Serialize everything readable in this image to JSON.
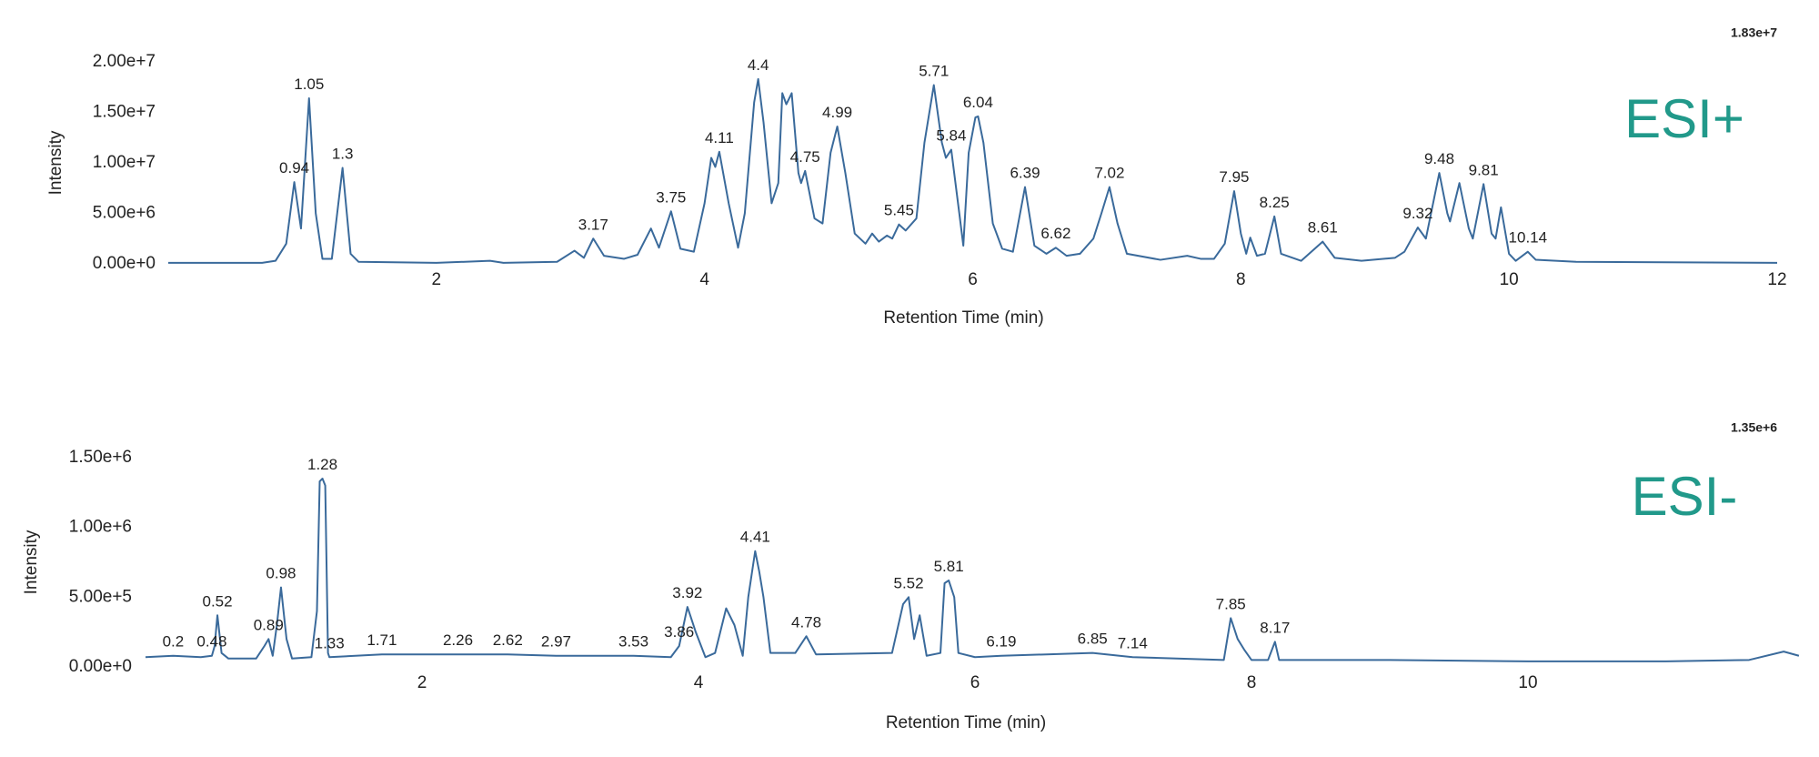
{
  "chart_data": [
    {
      "type": "line",
      "x_label": "Retention Time (min)",
      "y_label": "Intensity",
      "max_label": "1.83e+7",
      "annotation": "ESI+",
      "color": "#3a6a9b",
      "annotation_color": "#21998a",
      "xlim": [
        0,
        12
      ],
      "ylim": [
        0,
        20000000
      ],
      "xticks": [
        2,
        4,
        6,
        8,
        10,
        12
      ],
      "yticks": [
        {
          "value": 0,
          "label": "0.00e+0"
        },
        {
          "value": 5000000,
          "label": "5.00e+6"
        },
        {
          "value": 10000000,
          "label": "1.00e+7"
        },
        {
          "value": 15000000,
          "label": "1.50e+7"
        },
        {
          "value": 20000000,
          "label": "2.00e+7"
        }
      ],
      "x": [
        0,
        0.7,
        0.8,
        0.88,
        0.94,
        0.99,
        1.05,
        1.1,
        1.15,
        1.22,
        1.3,
        1.36,
        1.42,
        2.0,
        2.4,
        2.5,
        2.9,
        3.03,
        3.1,
        3.17,
        3.25,
        3.4,
        3.5,
        3.6,
        3.66,
        3.75,
        3.82,
        3.92,
        4.0,
        4.05,
        4.08,
        4.11,
        4.18,
        4.25,
        4.3,
        4.37,
        4.4,
        4.44,
        4.5,
        4.55,
        4.58,
        4.61,
        4.65,
        4.7,
        4.72,
        4.75,
        4.82,
        4.88,
        4.94,
        4.99,
        5.05,
        5.12,
        5.2,
        5.25,
        5.3,
        5.36,
        5.4,
        5.45,
        5.5,
        5.58,
        5.64,
        5.71,
        5.77,
        5.8,
        5.84,
        5.9,
        5.93,
        5.97,
        6.02,
        6.04,
        6.08,
        6.15,
        6.22,
        6.3,
        6.39,
        6.46,
        6.55,
        6.62,
        6.7,
        6.8,
        6.9,
        6.96,
        7.02,
        7.08,
        7.15,
        7.4,
        7.6,
        7.7,
        7.8,
        7.88,
        7.95,
        8.0,
        8.04,
        8.07,
        8.12,
        8.18,
        8.25,
        8.3,
        8.45,
        8.61,
        8.7,
        8.9,
        9.15,
        9.22,
        9.32,
        9.38,
        9.48,
        9.54,
        9.56,
        9.63,
        9.7,
        9.73,
        9.81,
        9.87,
        9.9,
        9.94,
        10.0,
        10.05,
        10.14,
        10.2,
        10.5,
        12
      ],
      "values": [
        100000.0,
        100000.0,
        300000.0,
        2000000.0,
        8100000.0,
        3500000.0,
        16400000.0,
        5000000.0,
        500000.0,
        500000.0,
        9500000.0,
        1000000.0,
        200000.0,
        100000.0,
        300000.0,
        100000.0,
        200000.0,
        1300000.0,
        600000.0,
        2500000.0,
        800000.0,
        500000.0,
        900000.0,
        3500000.0,
        1600000.0,
        5200000.0,
        1500000.0,
        1200000.0,
        6000000.0,
        10500000.0,
        9600000.0,
        11100000.0,
        6000000.0,
        1600000.0,
        5000000.0,
        16000000.0,
        18300000.0,
        14000000.0,
        6000000.0,
        8000000.0,
        16900000.0,
        15800000.0,
        16900000.0,
        9000000.0,
        8000000.0,
        9200000.0,
        4500000.0,
        4000000.0,
        11000000.0,
        13600000.0,
        9000000.0,
        3000000.0,
        2000000.0,
        3000000.0,
        2200000.0,
        2800000.0,
        2500000.0,
        3900000.0,
        3300000.0,
        4500000.0,
        12000000.0,
        17700000.0,
        12000000.0,
        10500000.0,
        11300000.0,
        5000000.0,
        1800000.0,
        11000000.0,
        14500000.0,
        14600000.0,
        12000000.0,
        4000000.0,
        1500000.0,
        1200000.0,
        7600000.0,
        1800000.0,
        1000000.0,
        1600000.0,
        800000.0,
        1000000.0,
        2500000.0,
        5000000.0,
        7600000.0,
        4000000.0,
        1000000.0,
        400000.0,
        800000.0,
        500000.0,
        500000.0,
        2000000.0,
        7200000.0,
        3000000.0,
        1000000.0,
        2600000.0,
        800000.0,
        1000000.0,
        4700000.0,
        1000000.0,
        300000.0,
        2200000.0,
        600000.0,
        300000.0,
        600000.0,
        1200000.0,
        3600000.0,
        2500000.0,
        9000000.0,
        5000000.0,
        4200000.0,
        8000000.0,
        3500000.0,
        2500000.0,
        7900000.0,
        3000000.0,
        2500000.0,
        5600000.0,
        1000000.0,
        300000.0,
        1200000.0,
        400000.0,
        200000.0,
        100000.0
      ],
      "peak_labels": {
        "x": [
          0.94,
          1.05,
          1.3,
          3.17,
          3.75,
          4.11,
          4.4,
          4.75,
          4.99,
          5.45,
          5.71,
          5.84,
          6.04,
          6.39,
          6.62,
          7.02,
          7.95,
          8.25,
          8.61,
          9.32,
          9.48,
          9.81,
          10.14
        ],
        "values": [
          8100000.0,
          16400000.0,
          9500000.0,
          2500000.0,
          5200000.0,
          11100000.0,
          18300000.0,
          9200000.0,
          13600000.0,
          3900000.0,
          17700000.0,
          11300000.0,
          14600000.0,
          7600000.0,
          1600000.0,
          7600000.0,
          7200000.0,
          4700000.0,
          2200000.0,
          3600000.0,
          9000000.0,
          7900000.0,
          1200000.0
        ]
      }
    },
    {
      "type": "line",
      "x_label": "Retention Time (min)",
      "y_label": "Intensity",
      "max_label": "1.35e+6",
      "annotation": "ESI-",
      "color": "#3a6a9b",
      "annotation_color": "#21998a",
      "xlim": [
        0,
        12
      ],
      "ylim": [
        0,
        1500000
      ],
      "xticks": [
        2,
        4,
        6,
        8,
        10
      ],
      "yticks": [
        {
          "value": 0,
          "label": "0.00e+0"
        },
        {
          "value": 500000,
          "label": "5.00e+5"
        },
        {
          "value": 1000000,
          "label": "1.00e+6"
        },
        {
          "value": 1500000,
          "label": "1.50e+6"
        }
      ],
      "x": [
        0,
        0.2,
        0.4,
        0.48,
        0.5,
        0.52,
        0.55,
        0.6,
        0.8,
        0.86,
        0.89,
        0.92,
        0.95,
        0.98,
        1.02,
        1.06,
        1.2,
        1.24,
        1.26,
        1.28,
        1.3,
        1.32,
        1.33,
        1.71,
        2.26,
        2.62,
        2.97,
        3.53,
        3.8,
        3.86,
        3.92,
        3.98,
        4.05,
        4.12,
        4.2,
        4.26,
        4.32,
        4.36,
        4.41,
        4.44,
        4.47,
        4.52,
        4.7,
        4.78,
        4.85,
        5.4,
        5.48,
        5.52,
        5.56,
        5.6,
        5.65,
        5.75,
        5.78,
        5.81,
        5.85,
        5.88,
        6.0,
        6.19,
        6.85,
        7.14,
        7.8,
        7.85,
        7.9,
        7.95,
        8.0,
        8.12,
        8.17,
        8.2,
        9,
        10,
        11,
        11.6,
        11.85,
        11.96
      ],
      "values": [
        70000.0,
        80000.0,
        70000.0,
        80000.0,
        150000.0,
        370000.0,
        100000.0,
        60000.0,
        60000.0,
        150000.0,
        200000.0,
        80000.0,
        300000.0,
        570000.0,
        200000.0,
        60000.0,
        70000.0,
        400000.0,
        1330000.0,
        1350000.0,
        1300000.0,
        100000.0,
        70000.0,
        90000.0,
        90000.0,
        90000.0,
        80000.0,
        80000.0,
        70000.0,
        150000.0,
        430000.0,
        250000.0,
        70000.0,
        100000.0,
        420000.0,
        300000.0,
        80000.0,
        500000.0,
        830000.0,
        680000.0,
        500000.0,
        100000.0,
        100000.0,
        220000.0,
        90000.0,
        100000.0,
        450000.0,
        500000.0,
        200000.0,
        370000.0,
        80000.0,
        100000.0,
        600000.0,
        620000.0,
        500000.0,
        100000.0,
        70000.0,
        80000.0,
        100000.0,
        70000.0,
        50000.0,
        350000.0,
        200000.0,
        120000.0,
        50000.0,
        50000.0,
        180000.0,
        50000.0,
        50000.0,
        40000.0,
        40000.0,
        50000.0,
        110000.0,
        80000.0
      ],
      "peak_labels": {
        "x": [
          0.2,
          0.48,
          0.52,
          0.89,
          0.98,
          1.28,
          1.33,
          1.71,
          2.26,
          2.62,
          2.97,
          3.53,
          3.86,
          3.92,
          4.41,
          4.78,
          5.52,
          5.81,
          6.19,
          6.85,
          7.14,
          7.85,
          8.17
        ],
        "values": [
          80000.0,
          80000.0,
          370000.0,
          200000.0,
          570000.0,
          1350000.0,
          70000.0,
          90000.0,
          90000.0,
          90000.0,
          80000.0,
          80000.0,
          150000.0,
          430000.0,
          830000.0,
          220000.0,
          500000.0,
          620000.0,
          80000.0,
          100000.0,
          70000.0,
          350000.0,
          180000.0
        ]
      }
    }
  ]
}
